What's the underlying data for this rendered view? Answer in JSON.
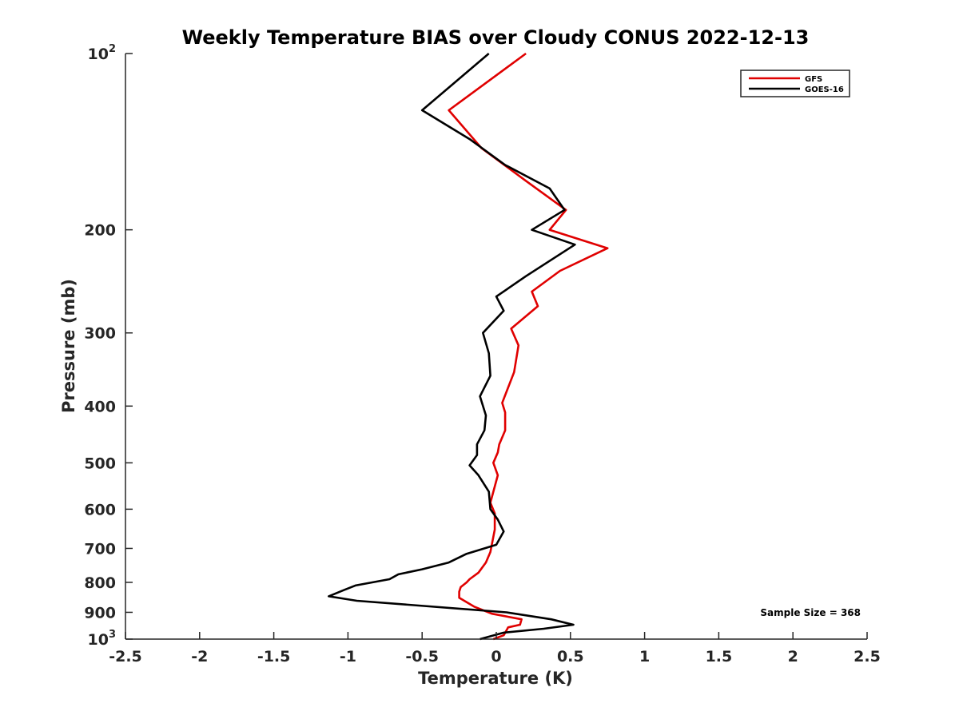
{
  "chart_data": {
    "type": "line",
    "title": "Weekly Temperature BIAS over Cloudy CONUS 2022-12-13",
    "xlabel": "Temperature (K)",
    "ylabel": "Pressure (mb)",
    "xlim": [
      -2.5,
      2.5
    ],
    "ylim": [
      100,
      1000
    ],
    "y_scale": "log",
    "y_reversed": true,
    "grid": false,
    "legend_position": "top-right",
    "x_ticks": [
      -2.5,
      -2,
      -1.5,
      -1,
      -0.5,
      0,
      0.5,
      1,
      1.5,
      2,
      2.5
    ],
    "x_tick_labels": [
      "-2.5",
      "-2",
      "-1.5",
      "-1",
      "-0.5",
      "0",
      "0.5",
      "1",
      "1.5",
      "2",
      "2.5"
    ],
    "y_ticks": [
      {
        "value": 100,
        "label": "10",
        "sup": "2"
      },
      {
        "value": 200,
        "label": "200",
        "sup": ""
      },
      {
        "value": 300,
        "label": "300",
        "sup": ""
      },
      {
        "value": 400,
        "label": "400",
        "sup": ""
      },
      {
        "value": 500,
        "label": "500",
        "sup": ""
      },
      {
        "value": 600,
        "label": "600",
        "sup": ""
      },
      {
        "value": 700,
        "label": "700",
        "sup": ""
      },
      {
        "value": 800,
        "label": "800",
        "sup": ""
      },
      {
        "value": 900,
        "label": "900",
        "sup": ""
      },
      {
        "value": 1000,
        "label": "10",
        "sup": "3"
      }
    ],
    "annotation": "Sample Size = 368",
    "series": [
      {
        "name": "GFS",
        "color": "#e00000",
        "x": [
          0.2,
          -0.32,
          -0.1,
          0.2,
          0.47,
          0.36,
          0.75,
          0.43,
          0.24,
          0.28,
          0.1,
          0.15,
          0.12,
          0.04,
          0.06,
          0.06,
          0.02,
          0.01,
          -0.02,
          0.01,
          -0.04,
          -0.01,
          -0.01,
          -0.04,
          -0.07,
          -0.12,
          -0.18,
          -0.2,
          -0.24,
          -0.25,
          -0.25,
          -0.15,
          -0.03,
          0.17,
          0.16,
          0.08,
          0.07,
          0.05,
          -0.02
        ],
        "y": [
          100,
          125,
          145,
          165,
          185,
          200,
          215,
          235,
          255,
          270,
          295,
          315,
          350,
          395,
          410,
          440,
          465,
          480,
          500,
          525,
          585,
          610,
          650,
          710,
          740,
          770,
          790,
          800,
          815,
          830,
          850,
          880,
          905,
          925,
          945,
          955,
          965,
          985,
          1000
        ]
      },
      {
        "name": "GOES-16",
        "color": "#000000",
        "x": [
          -0.05,
          -0.5,
          -0.18,
          0.06,
          0.36,
          0.46,
          0.24,
          0.53,
          0.2,
          0.0,
          0.05,
          -0.09,
          -0.05,
          -0.04,
          -0.11,
          -0.07,
          -0.08,
          -0.13,
          -0.13,
          -0.18,
          -0.12,
          -0.05,
          -0.04,
          0.01,
          0.05,
          0.0,
          -0.2,
          -0.32,
          -0.5,
          -0.66,
          -0.72,
          -0.95,
          -1.03,
          -1.13,
          -0.94,
          0.07,
          0.37,
          0.52,
          0.32,
          0.05,
          -0.11
        ],
        "y": [
          100,
          125,
          140,
          155,
          170,
          185,
          200,
          212,
          240,
          260,
          275,
          300,
          325,
          355,
          385,
          415,
          440,
          465,
          485,
          505,
          525,
          560,
          600,
          625,
          655,
          690,
          715,
          740,
          760,
          775,
          790,
          810,
          825,
          845,
          860,
          900,
          925,
          945,
          960,
          975,
          1000
        ]
      }
    ]
  }
}
